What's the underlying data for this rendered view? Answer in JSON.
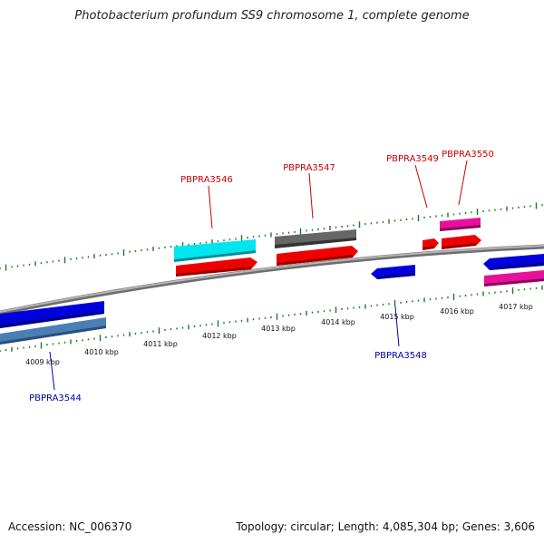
{
  "title": "Photobacterium profundum SS9 chromosome 1, complete genome",
  "footer": {
    "accession": "Accession: NC_006370",
    "summary": "Topology: circular; Length: 4,085,304 bp; Genes: 3,606"
  },
  "colors": {
    "backbone": "#888888",
    "ticks": "#1a7a1a",
    "forward_label": "#cc0000",
    "reverse_label": "#0000aa",
    "red": "#ee0000",
    "cyan": "#00e5ee",
    "gray": "#555555",
    "magenta": "#e8109a",
    "blue": "#0000dd",
    "steelblue": "#4a7fb5"
  },
  "scale_labels": [
    "4009 kbp",
    "4010 kbp",
    "4011 kbp",
    "4012 kbp",
    "4013 kbp",
    "4014 kbp",
    "4015 kbp",
    "4016 kbp",
    "4017 kbp"
  ],
  "gene_labels": [
    {
      "name": "PBPRA3546",
      "strand": "forward"
    },
    {
      "name": "PBPRA3547",
      "strand": "forward"
    },
    {
      "name": "PBPRA3549",
      "strand": "forward"
    },
    {
      "name": "PBPRA3550",
      "strand": "forward"
    },
    {
      "name": "PBPRA3548",
      "strand": "reverse"
    },
    {
      "name": "PBPRA3544",
      "strand": "reverse"
    }
  ]
}
